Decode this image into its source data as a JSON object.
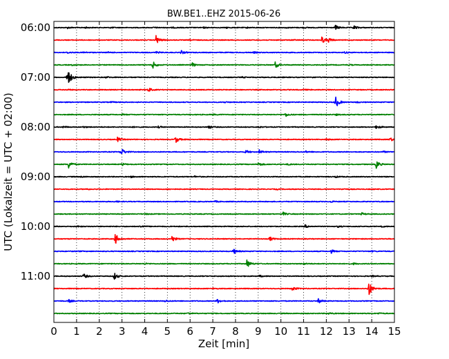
{
  "chart_data": {
    "type": "line",
    "title": "BW.BE1..EHZ 2015-06-26",
    "xlabel": "Zeit  [min]",
    "ylabel": "UTC (Lokalzeit = UTC + 02:00)",
    "xlim": [
      0,
      15
    ],
    "x_ticks": [
      "0",
      "1",
      "2",
      "3",
      "4",
      "5",
      "6",
      "7",
      "8",
      "9",
      "10",
      "11",
      "12",
      "13",
      "14",
      "15"
    ],
    "y_tick_labels": [
      "06:00",
      "07:00",
      "08:00",
      "09:00",
      "10:00",
      "11:00"
    ],
    "row_interval_minutes": 15,
    "start_time": "06:00",
    "grid": "vertical dotted lines at each minute",
    "colors_cycle": [
      "#000000",
      "#ff0000",
      "#0000ff",
      "#008000"
    ],
    "series": [
      {
        "time": "06:00",
        "color": "#000000",
        "events": [
          [
            0.6,
            0.12
          ],
          [
            1.4,
            0.08
          ],
          [
            2.5,
            0.08
          ],
          [
            4.4,
            0.08
          ],
          [
            5.2,
            0.08
          ],
          [
            6.6,
            0.08
          ],
          [
            7.6,
            0.08
          ],
          [
            8.5,
            0.08
          ],
          [
            10.2,
            0.08
          ],
          [
            11.0,
            0.08
          ],
          [
            12.4,
            0.35
          ],
          [
            13.2,
            0.35
          ]
        ]
      },
      {
        "time": "06:15",
        "color": "#ff0000",
        "events": [
          [
            4.5,
            0.75
          ],
          [
            11.8,
            0.55
          ],
          [
            12.1,
            0.3
          ],
          [
            6.0,
            0.08
          ],
          [
            10.5,
            0.08
          ]
        ]
      },
      {
        "time": "06:30",
        "color": "#0000ff",
        "events": [
          [
            0.6,
            0.12
          ],
          [
            1.3,
            0.1
          ],
          [
            2.4,
            0.08
          ],
          [
            4.5,
            0.15
          ],
          [
            5.6,
            0.3
          ],
          [
            8.8,
            0.1
          ],
          [
            12.8,
            0.15
          ]
        ]
      },
      {
        "time": "06:45",
        "color": "#008000",
        "events": [
          [
            4.35,
            0.6
          ],
          [
            6.1,
            0.3
          ],
          [
            9.75,
            0.5
          ],
          [
            0.8,
            0.08
          ],
          [
            13.0,
            0.08
          ]
        ]
      },
      {
        "time": "07:00",
        "color": "#000000",
        "events": [
          [
            0.58,
            1.9
          ],
          [
            2.3,
            0.12
          ],
          [
            8.3,
            0.08
          ],
          [
            11.3,
            0.08
          ]
        ]
      },
      {
        "time": "07:15",
        "color": "#ff0000",
        "events": [
          [
            4.15,
            0.35
          ],
          [
            0.6,
            0.08
          ],
          [
            11.0,
            0.08
          ]
        ]
      },
      {
        "time": "07:30",
        "color": "#0000ff",
        "events": [
          [
            12.4,
            1.0
          ],
          [
            13.3,
            0.12
          ],
          [
            2.5,
            0.08
          ],
          [
            7.5,
            0.08
          ]
        ]
      },
      {
        "time": "07:45",
        "color": "#008000",
        "events": [
          [
            10.2,
            0.3
          ],
          [
            12.4,
            0.12
          ],
          [
            3.0,
            0.08
          ],
          [
            7.0,
            0.08
          ]
        ]
      },
      {
        "time": "08:00",
        "color": "#000000",
        "events": [
          [
            0.4,
            0.15
          ],
          [
            1.3,
            0.1
          ],
          [
            3.4,
            0.1
          ],
          [
            4.6,
            0.12
          ],
          [
            6.8,
            0.3
          ],
          [
            9.0,
            0.15
          ],
          [
            14.2,
            0.35
          ]
        ]
      },
      {
        "time": "08:15",
        "color": "#ff0000",
        "events": [
          [
            2.8,
            0.35
          ],
          [
            5.35,
            0.55
          ],
          [
            12.0,
            0.12
          ],
          [
            14.8,
            0.3
          ]
        ]
      },
      {
        "time": "08:30",
        "color": "#0000ff",
        "events": [
          [
            2.95,
            0.7
          ],
          [
            8.45,
            0.3
          ],
          [
            9.05,
            0.3
          ],
          [
            11.1,
            0.12
          ],
          [
            14.5,
            0.12
          ]
        ]
      },
      {
        "time": "08:45",
        "color": "#008000",
        "events": [
          [
            0.65,
            0.65
          ],
          [
            3.0,
            0.2
          ],
          [
            9.0,
            0.3
          ],
          [
            10.3,
            0.12
          ],
          [
            14.2,
            0.65
          ]
        ]
      },
      {
        "time": "09:00",
        "color": "#000000",
        "events": [
          [
            1.2,
            0.1
          ],
          [
            3.4,
            0.1
          ],
          [
            6.2,
            0.1
          ],
          [
            12.4,
            0.12
          ]
        ]
      },
      {
        "time": "09:15",
        "color": "#ff0000",
        "events": [
          [
            1.4,
            0.1
          ],
          [
            5.0,
            0.08
          ],
          [
            9.8,
            0.08
          ],
          [
            12.7,
            0.08
          ]
        ]
      },
      {
        "time": "09:30",
        "color": "#0000ff",
        "events": [
          [
            2.7,
            0.1
          ],
          [
            7.1,
            0.1
          ],
          [
            12.2,
            0.1
          ]
        ]
      },
      {
        "time": "09:45",
        "color": "#008000",
        "events": [
          [
            10.1,
            0.25
          ],
          [
            13.55,
            0.2
          ],
          [
            4.0,
            0.08
          ]
        ]
      },
      {
        "time": "10:00",
        "color": "#000000",
        "events": [
          [
            1.0,
            0.1
          ],
          [
            3.8,
            0.2
          ],
          [
            11.05,
            0.25
          ],
          [
            12.5,
            0.12
          ],
          [
            14.4,
            0.12
          ]
        ]
      },
      {
        "time": "10:15",
        "color": "#ff0000",
        "events": [
          [
            2.7,
            0.9
          ],
          [
            5.2,
            0.5
          ],
          [
            9.5,
            0.35
          ]
        ]
      },
      {
        "time": "10:30",
        "color": "#0000ff",
        "events": [
          [
            7.9,
            0.45
          ],
          [
            12.2,
            0.3
          ],
          [
            1.0,
            0.08
          ],
          [
            14.0,
            0.08
          ]
        ]
      },
      {
        "time": "10:45",
        "color": "#008000",
        "events": [
          [
            8.5,
            0.65
          ],
          [
            4.0,
            0.1
          ],
          [
            11.0,
            0.12
          ],
          [
            13.2,
            0.12
          ]
        ]
      },
      {
        "time": "11:00",
        "color": "#000000",
        "events": [
          [
            1.3,
            0.4
          ],
          [
            2.65,
            0.6
          ],
          [
            9.05,
            0.15
          ],
          [
            14.0,
            0.12
          ]
        ]
      },
      {
        "time": "11:15",
        "color": "#ff0000",
        "events": [
          [
            10.5,
            0.35
          ],
          [
            13.85,
            1.4
          ],
          [
            7.0,
            0.08
          ]
        ]
      },
      {
        "time": "11:30",
        "color": "#0000ff",
        "events": [
          [
            0.65,
            0.25
          ],
          [
            4.9,
            0.15
          ],
          [
            7.2,
            0.35
          ],
          [
            11.65,
            0.35
          ]
        ]
      },
      {
        "time": "11:45",
        "color": "#008000",
        "events": [
          [
            5.9,
            0.12
          ],
          [
            12.1,
            0.12
          ],
          [
            14.3,
            0.1
          ]
        ]
      }
    ]
  }
}
